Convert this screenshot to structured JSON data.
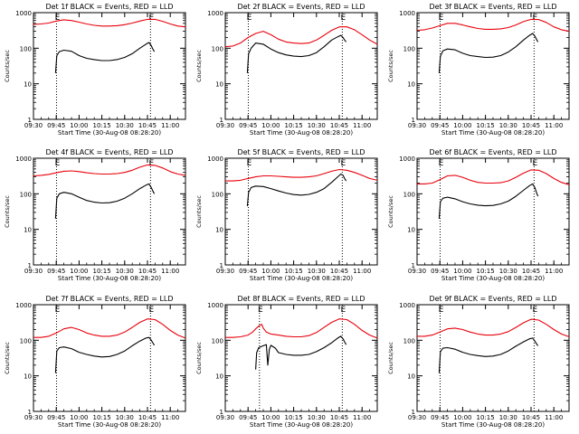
{
  "colors": {
    "events": "#000000",
    "lld": "#e8000b",
    "axis": "#000000"
  },
  "shared": {
    "xlabel": "Start Time (30-Aug-08 08:28:20)",
    "ylabel": "Counts/sec",
    "x_ticks": [
      "09:30",
      "09:45",
      "10:00",
      "10:15",
      "10:30",
      "10:45",
      "11:00"
    ],
    "y_ticks": [
      "1",
      "10",
      "100",
      "1000"
    ],
    "marker_label": "E",
    "x_range": [
      "09:30",
      "11:10"
    ],
    "y_range": [
      1,
      1000
    ],
    "y_scale": "log"
  },
  "chart_data": [
    {
      "type": "line",
      "title": "Det 1f BLACK = Events, RED = LLD",
      "marker_times": [
        "09:45:10",
        "10:47:00"
      ],
      "series": [
        {
          "name": "Events",
          "color": "black",
          "x": [
            "09:44:30",
            "09:45:20",
            "09:47:00",
            "09:50:00",
            "09:55:00",
            "10:00:00",
            "10:05:00",
            "10:10:00",
            "10:15:00",
            "10:20:00",
            "10:25:00",
            "10:30:00",
            "10:35:00",
            "10:40:00",
            "10:44:00",
            "10:46:00",
            "10:47:30",
            "10:48:30",
            "10:49:30"
          ],
          "y": [
            20,
            62,
            80,
            88,
            82,
            62,
            52,
            48,
            45,
            45,
            48,
            55,
            70,
            100,
            130,
            145,
            118,
            95,
            80
          ]
        },
        {
          "name": "LLD",
          "color": "red",
          "x": [
            "09:30:00",
            "09:35:00",
            "09:40:00",
            "09:45:00",
            "09:50:00",
            "09:55:00",
            "10:00:00",
            "10:05:00",
            "10:10:00",
            "10:15:00",
            "10:20:00",
            "10:25:00",
            "10:30:00",
            "10:35:00",
            "10:40:00",
            "10:45:00",
            "10:50:00",
            "10:55:00",
            "11:00:00",
            "11:05:00",
            "11:10:00"
          ],
          "y": [
            470,
            480,
            510,
            580,
            630,
            600,
            540,
            480,
            440,
            420,
            420,
            430,
            460,
            510,
            580,
            650,
            650,
            570,
            480,
            420,
            400
          ]
        }
      ]
    },
    {
      "type": "line",
      "title": "Det 2f BLACK = Events, RED = LLD",
      "marker_times": [
        "09:45:10",
        "10:47:00"
      ],
      "series": [
        {
          "name": "Events",
          "color": "black",
          "x": [
            "09:44:30",
            "09:45:20",
            "09:47:00",
            "09:50:00",
            "09:55:00",
            "10:00:00",
            "10:05:00",
            "10:10:00",
            "10:15:00",
            "10:20:00",
            "10:25:00",
            "10:30:00",
            "10:35:00",
            "10:40:00",
            "10:44:00",
            "10:46:00",
            "10:47:30",
            "10:48:30",
            "10:49:30"
          ],
          "y": [
            20,
            70,
            100,
            140,
            130,
            95,
            75,
            65,
            60,
            58,
            62,
            75,
            110,
            170,
            210,
            230,
            200,
            170,
            150
          ]
        },
        {
          "name": "LLD",
          "color": "red",
          "x": [
            "09:30:00",
            "09:35:00",
            "09:40:00",
            "09:45:00",
            "09:50:00",
            "09:55:00",
            "10:00:00",
            "10:05:00",
            "10:10:00",
            "10:15:00",
            "10:20:00",
            "10:25:00",
            "10:30:00",
            "10:35:00",
            "10:40:00",
            "10:45:00",
            "10:50:00",
            "10:55:00",
            "11:00:00",
            "11:05:00",
            "11:10:00"
          ],
          "y": [
            110,
            115,
            140,
            200,
            260,
            300,
            240,
            180,
            150,
            140,
            135,
            140,
            170,
            230,
            320,
            400,
            400,
            330,
            240,
            170,
            130
          ]
        }
      ]
    },
    {
      "type": "line",
      "title": "Det 3f BLACK = Events, RED = LLD",
      "marker_times": [
        "09:45:10",
        "10:47:00"
      ],
      "series": [
        {
          "name": "Events",
          "color": "black",
          "x": [
            "09:44:30",
            "09:45:20",
            "09:47:00",
            "09:50:00",
            "09:55:00",
            "10:00:00",
            "10:05:00",
            "10:10:00",
            "10:15:00",
            "10:20:00",
            "10:25:00",
            "10:30:00",
            "10:35:00",
            "10:40:00",
            "10:44:00",
            "10:46:00",
            "10:47:30",
            "10:48:30",
            "10:49:30"
          ],
          "y": [
            20,
            60,
            85,
            95,
            90,
            72,
            62,
            58,
            55,
            56,
            62,
            78,
            110,
            170,
            230,
            260,
            220,
            180,
            150
          ]
        },
        {
          "name": "LLD",
          "color": "red",
          "x": [
            "09:30:00",
            "09:35:00",
            "09:40:00",
            "09:45:00",
            "09:50:00",
            "09:55:00",
            "10:00:00",
            "10:05:00",
            "10:10:00",
            "10:15:00",
            "10:20:00",
            "10:25:00",
            "10:30:00",
            "10:35:00",
            "10:40:00",
            "10:45:00",
            "10:50:00",
            "10:55:00",
            "11:00:00",
            "11:05:00",
            "11:10:00"
          ],
          "y": [
            320,
            330,
            370,
            430,
            500,
            500,
            450,
            400,
            360,
            340,
            340,
            350,
            380,
            450,
            560,
            650,
            640,
            530,
            400,
            330,
            300
          ]
        }
      ]
    },
    {
      "type": "line",
      "title": "Det 4f BLACK = Events, RED = LLD",
      "marker_times": [
        "09:45:10",
        "10:47:00"
      ],
      "series": [
        {
          "name": "Events",
          "color": "black",
          "x": [
            "09:44:30",
            "09:45:20",
            "09:47:00",
            "09:50:00",
            "09:55:00",
            "10:00:00",
            "10:05:00",
            "10:10:00",
            "10:15:00",
            "10:20:00",
            "10:25:00",
            "10:30:00",
            "10:35:00",
            "10:40:00",
            "10:44:00",
            "10:46:00",
            "10:47:30",
            "10:48:30",
            "10:49:30"
          ],
          "y": [
            20,
            75,
            100,
            110,
            100,
            80,
            65,
            58,
            55,
            56,
            62,
            75,
            100,
            140,
            175,
            190,
            150,
            120,
            100
          ]
        },
        {
          "name": "LLD",
          "color": "red",
          "x": [
            "09:30:00",
            "09:35:00",
            "09:40:00",
            "09:45:00",
            "09:50:00",
            "09:55:00",
            "10:00:00",
            "10:05:00",
            "10:10:00",
            "10:15:00",
            "10:20:00",
            "10:25:00",
            "10:30:00",
            "10:35:00",
            "10:40:00",
            "10:45:00",
            "10:50:00",
            "10:55:00",
            "11:00:00",
            "11:05:00",
            "11:10:00"
          ],
          "y": [
            320,
            330,
            350,
            390,
            430,
            440,
            420,
            390,
            370,
            360,
            360,
            370,
            400,
            460,
            560,
            650,
            630,
            530,
            420,
            360,
            330
          ]
        }
      ]
    },
    {
      "type": "line",
      "title": "Det 5f BLACK = Events, RED = LLD",
      "marker_times": [
        "09:45:10",
        "10:47:00"
      ],
      "series": [
        {
          "name": "Events",
          "color": "black",
          "x": [
            "09:44:30",
            "09:45:20",
            "09:47:00",
            "09:50:00",
            "09:55:00",
            "10:00:00",
            "10:05:00",
            "10:10:00",
            "10:15:00",
            "10:20:00",
            "10:25:00",
            "10:30:00",
            "10:35:00",
            "10:40:00",
            "10:44:00",
            "10:46:00",
            "10:47:30",
            "10:48:30",
            "10:49:30"
          ],
          "y": [
            45,
            110,
            150,
            165,
            160,
            140,
            120,
            105,
            95,
            92,
            96,
            110,
            140,
            210,
            300,
            360,
            330,
            270,
            230
          ]
        },
        {
          "name": "LLD",
          "color": "red",
          "x": [
            "09:30:00",
            "09:35:00",
            "09:40:00",
            "09:45:00",
            "09:50:00",
            "09:55:00",
            "10:00:00",
            "10:05:00",
            "10:10:00",
            "10:15:00",
            "10:20:00",
            "10:25:00",
            "10:30:00",
            "10:35:00",
            "10:40:00",
            "10:45:00",
            "10:50:00",
            "10:55:00",
            "11:00:00",
            "11:05:00",
            "11:10:00"
          ],
          "y": [
            230,
            230,
            240,
            270,
            300,
            320,
            320,
            310,
            300,
            290,
            290,
            300,
            320,
            370,
            430,
            480,
            460,
            400,
            330,
            270,
            240
          ]
        }
      ]
    },
    {
      "type": "line",
      "title": "Det 6f BLACK = Events, RED = LLD",
      "marker_times": [
        "09:45:10",
        "10:47:00"
      ],
      "series": [
        {
          "name": "Events",
          "color": "black",
          "x": [
            "09:44:30",
            "09:45:20",
            "09:47:00",
            "09:50:00",
            "09:55:00",
            "10:00:00",
            "10:05:00",
            "10:10:00",
            "10:15:00",
            "10:20:00",
            "10:25:00",
            "10:30:00",
            "10:35:00",
            "10:40:00",
            "10:44:00",
            "10:46:00",
            "10:47:30",
            "10:48:30",
            "10:49:30"
          ],
          "y": [
            20,
            60,
            75,
            80,
            72,
            60,
            52,
            48,
            46,
            47,
            52,
            62,
            85,
            125,
            170,
            190,
            150,
            110,
            85
          ]
        },
        {
          "name": "LLD",
          "color": "red",
          "x": [
            "09:30:00",
            "09:35:00",
            "09:40:00",
            "09:45:00",
            "09:50:00",
            "09:55:00",
            "10:00:00",
            "10:05:00",
            "10:10:00",
            "10:15:00",
            "10:20:00",
            "10:25:00",
            "10:30:00",
            "10:35:00",
            "10:40:00",
            "10:45:00",
            "10:50:00",
            "10:55:00",
            "11:00:00",
            "11:05:00",
            "11:10:00"
          ],
          "y": [
            190,
            190,
            200,
            250,
            320,
            330,
            290,
            240,
            210,
            200,
            200,
            205,
            230,
            290,
            380,
            470,
            460,
            370,
            270,
            210,
            180
          ]
        }
      ]
    },
    {
      "type": "line",
      "title": "Det 7f BLACK = Events, RED = LLD",
      "marker_times": [
        "09:45:10",
        "10:47:00"
      ],
      "series": [
        {
          "name": "Events",
          "color": "black",
          "x": [
            "09:44:30",
            "09:45:20",
            "09:47:00",
            "09:50:00",
            "09:55:00",
            "10:00:00",
            "10:05:00",
            "10:10:00",
            "10:15:00",
            "10:20:00",
            "10:25:00",
            "10:30:00",
            "10:35:00",
            "10:40:00",
            "10:44:00",
            "10:46:00",
            "10:47:30",
            "10:48:30",
            "10:49:30"
          ],
          "y": [
            12,
            50,
            62,
            65,
            58,
            46,
            40,
            36,
            34,
            35,
            40,
            50,
            70,
            95,
            115,
            120,
            100,
            85,
            72
          ]
        },
        {
          "name": "LLD",
          "color": "red",
          "x": [
            "09:30:00",
            "09:35:00",
            "09:40:00",
            "09:45:00",
            "09:50:00",
            "09:55:00",
            "10:00:00",
            "10:05:00",
            "10:10:00",
            "10:15:00",
            "10:20:00",
            "10:25:00",
            "10:30:00",
            "10:35:00",
            "10:40:00",
            "10:45:00",
            "10:50:00",
            "10:55:00",
            "11:00:00",
            "11:05:00",
            "11:10:00"
          ],
          "y": [
            120,
            120,
            130,
            160,
            210,
            230,
            200,
            160,
            140,
            130,
            130,
            140,
            170,
            230,
            320,
            400,
            380,
            280,
            190,
            140,
            115
          ]
        }
      ]
    },
    {
      "type": "line",
      "title": "Det 8f BLACK = Events, RED = LLD",
      "marker_times": [
        "09:52:30",
        "10:47:00"
      ],
      "series": [
        {
          "name": "Events",
          "color": "black",
          "x": [
            "09:50:00",
            "09:50:40",
            "09:52:00",
            "09:55:00",
            "09:57:00",
            "09:58:00",
            "09:59:00",
            "10:00:00",
            "10:03:00",
            "10:05:00",
            "10:10:00",
            "10:15:00",
            "10:20:00",
            "10:25:00",
            "10:30:00",
            "10:35:00",
            "10:40:00",
            "10:44:00",
            "10:46:00",
            "10:47:30",
            "10:48:30",
            "10:49:30"
          ],
          "y": [
            15,
            45,
            62,
            70,
            75,
            20,
            55,
            72,
            60,
            45,
            40,
            38,
            38,
            40,
            48,
            62,
            85,
            115,
            130,
            110,
            90,
            75
          ]
        },
        {
          "name": "LLD",
          "color": "red",
          "x": [
            "09:30:00",
            "09:35:00",
            "09:40:00",
            "09:45:00",
            "09:48:00",
            "09:50:00",
            "09:52:00",
            "09:54:00",
            "09:55:00",
            "09:57:00",
            "10:00:00",
            "10:05:00",
            "10:10:00",
            "10:15:00",
            "10:20:00",
            "10:25:00",
            "10:30:00",
            "10:35:00",
            "10:40:00",
            "10:45:00",
            "10:50:00",
            "10:55:00",
            "11:00:00",
            "11:05:00",
            "11:10:00"
          ],
          "y": [
            120,
            120,
            125,
            140,
            170,
            210,
            250,
            280,
            220,
            170,
            150,
            140,
            130,
            125,
            125,
            135,
            165,
            230,
            320,
            400,
            380,
            280,
            190,
            140,
            115
          ]
        }
      ]
    },
    {
      "type": "line",
      "title": "Det 9f BLACK = Events, RED = LLD",
      "marker_times": [
        "09:45:10",
        "10:47:00"
      ],
      "series": [
        {
          "name": "Events",
          "color": "black",
          "x": [
            "09:44:30",
            "09:45:20",
            "09:47:00",
            "09:50:00",
            "09:55:00",
            "10:00:00",
            "10:05:00",
            "10:10:00",
            "10:15:00",
            "10:20:00",
            "10:25:00",
            "10:30:00",
            "10:35:00",
            "10:40:00",
            "10:44:00",
            "10:46:00",
            "10:47:30",
            "10:48:30",
            "10:49:30"
          ],
          "y": [
            12,
            48,
            60,
            62,
            56,
            46,
            40,
            37,
            35,
            36,
            40,
            50,
            68,
            90,
            110,
            115,
            95,
            80,
            70
          ]
        },
        {
          "name": "LLD",
          "color": "red",
          "x": [
            "09:30:00",
            "09:35:00",
            "09:40:00",
            "09:45:00",
            "09:50:00",
            "09:55:00",
            "10:00:00",
            "10:05:00",
            "10:10:00",
            "10:15:00",
            "10:20:00",
            "10:25:00",
            "10:30:00",
            "10:35:00",
            "10:40:00",
            "10:45:00",
            "10:50:00",
            "10:55:00",
            "11:00:00",
            "11:05:00",
            "11:10:00"
          ],
          "y": [
            130,
            130,
            140,
            170,
            210,
            220,
            200,
            170,
            150,
            140,
            140,
            150,
            175,
            230,
            310,
            390,
            370,
            280,
            200,
            150,
            125
          ]
        }
      ]
    }
  ]
}
